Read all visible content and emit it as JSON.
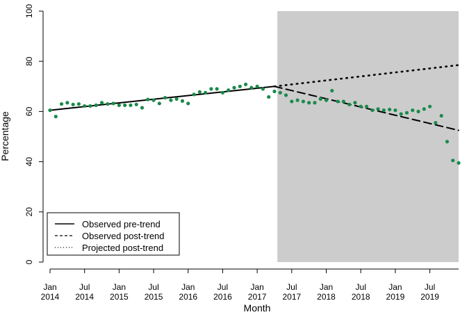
{
  "chart_data": {
    "type": "scatter",
    "xlabel": "Month",
    "ylabel": "Percentage",
    "ylim": [
      0,
      100
    ],
    "xlim": [
      0,
      71
    ],
    "yticks": [
      0,
      20,
      40,
      60,
      80,
      100
    ],
    "xticks": [
      {
        "i": 0,
        "month": "Jan",
        "year": "2014"
      },
      {
        "i": 6,
        "month": "Jul",
        "year": "2014"
      },
      {
        "i": 12,
        "month": "Jan",
        "year": "2015"
      },
      {
        "i": 18,
        "month": "Jul",
        "year": "2015"
      },
      {
        "i": 24,
        "month": "Jan",
        "year": "2016"
      },
      {
        "i": 30,
        "month": "Jul",
        "year": "2016"
      },
      {
        "i": 36,
        "month": "Jan",
        "year": "2017"
      },
      {
        "i": 42,
        "month": "Jul",
        "year": "2017"
      },
      {
        "i": 48,
        "month": "Jan",
        "year": "2018"
      },
      {
        "i": 54,
        "month": "Jul",
        "year": "2018"
      },
      {
        "i": 60,
        "month": "Jan",
        "year": "2019"
      },
      {
        "i": 66,
        "month": "Jul",
        "year": "2019"
      }
    ],
    "shaded_region": {
      "from": 39.5,
      "to": 71,
      "color": "#cccccc"
    },
    "point_color": "#1a8a4a",
    "points": [
      60.5,
      58,
      63,
      63.5,
      62.8,
      63,
      62.2,
      62.2,
      62.5,
      63.5,
      63,
      63.2,
      62.5,
      62.5,
      62.5,
      62.8,
      61.5,
      64.8,
      64.5,
      63.2,
      65.5,
      64.5,
      65,
      64.2,
      63.2,
      66.8,
      67.8,
      67.5,
      69,
      69,
      67.5,
      68.5,
      69.5,
      70,
      70.8,
      69.5,
      70,
      69,
      65.8,
      68,
      67.5,
      66.5,
      64,
      64.5,
      64,
      63.5,
      63.5,
      65,
      64.5,
      68.3,
      64,
      64,
      62.8,
      63.5,
      62,
      62,
      60.5,
      61,
      60.5,
      60.8,
      60.5,
      59,
      59.5,
      60.5,
      60,
      61,
      62,
      55.5,
      58.3,
      48,
      40.5,
      39.5
    ],
    "lines": [
      {
        "name": "Observed pre-trend",
        "style": "solid",
        "x": [
          0,
          39
        ],
        "y": [
          60.5,
          70
        ]
      },
      {
        "name": "Observed post-trend",
        "style": "dashed",
        "x": [
          39,
          71
        ],
        "y": [
          70,
          52.5
        ]
      },
      {
        "name": "Projected post-trend",
        "style": "dotted",
        "x": [
          39,
          71
        ],
        "y": [
          70,
          78.5
        ]
      }
    ],
    "legend_position": "bottom-left"
  }
}
